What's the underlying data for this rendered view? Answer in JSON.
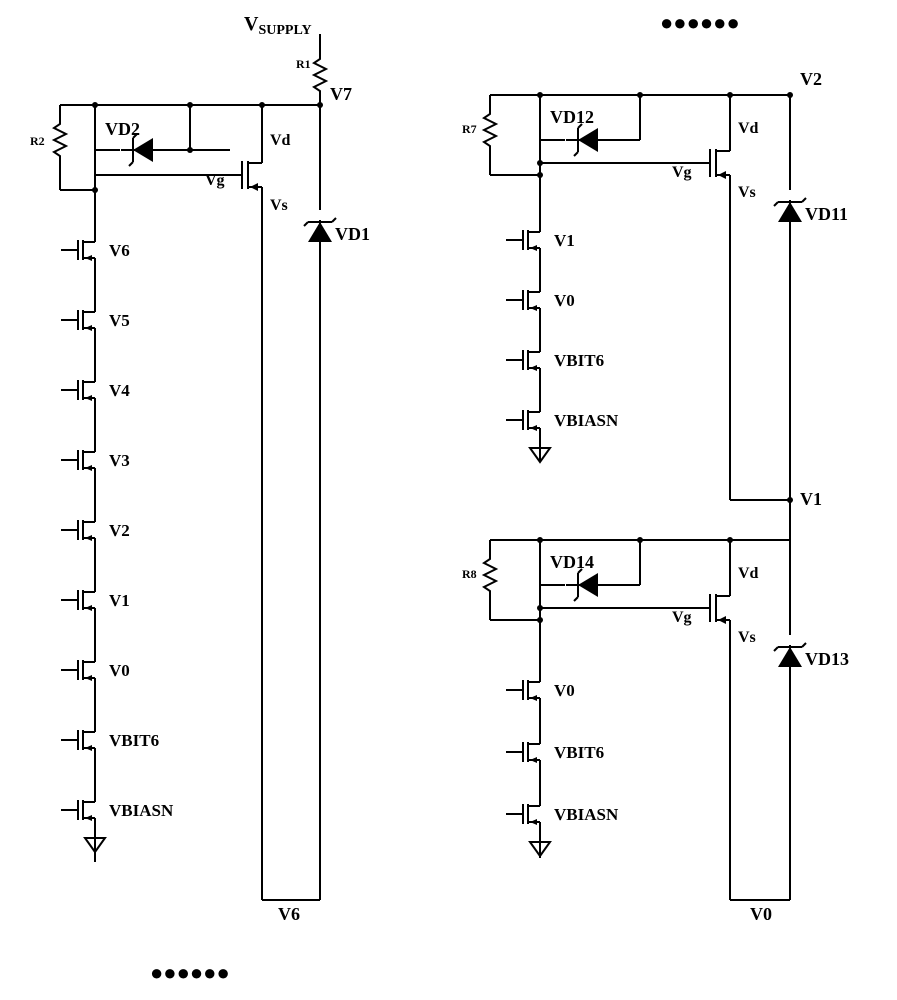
{
  "colors": {
    "stroke": "#000000",
    "fill": "#000000",
    "bg": "#ffffff"
  },
  "line_width": 2,
  "font": {
    "label_size": 18,
    "small_size": 14,
    "weight": "bold"
  },
  "vsupply": "V",
  "vsupply_sub": "SUPPLY",
  "dots": "●●●●●●",
  "left_block": {
    "resistor_top": "R1",
    "resistor_left": "R2",
    "zener_top": "VD2",
    "zener_right": "VD1",
    "node_top": "V7",
    "node_bottom": "V6",
    "mosfet_terms": {
      "d": "Vd",
      "g": "Vg",
      "s": "Vs"
    },
    "stack": [
      "V6",
      "V5",
      "V4",
      "V3",
      "V2",
      "V1",
      "V0",
      "VBIT6",
      "VBIASN"
    ]
  },
  "right_upper": {
    "resistor_left": "R7",
    "zener_top": "VD12",
    "zener_right": "VD11",
    "node_top": "V2",
    "node_bottom": "V1",
    "mosfet_terms": {
      "d": "Vd",
      "g": "Vg",
      "s": "Vs"
    },
    "stack": [
      "V1",
      "V0",
      "VBIT6",
      "VBIASN"
    ]
  },
  "right_lower": {
    "resistor_left": "R8",
    "zener_top": "VD14",
    "zener_right": "VD13",
    "node_bottom": "V0",
    "mosfet_terms": {
      "d": "Vd",
      "g": "Vg",
      "s": "Vs"
    },
    "stack": [
      "V0",
      "VBIT6",
      "VBIASN"
    ]
  }
}
